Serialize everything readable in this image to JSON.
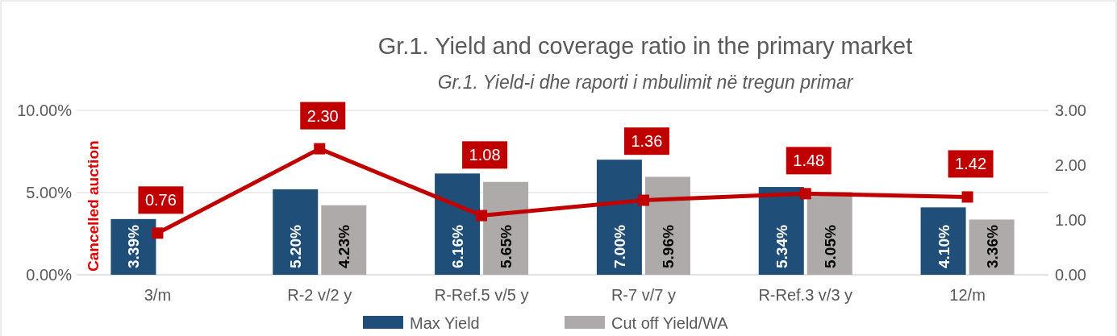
{
  "chart_data": {
    "type": "bar",
    "title": "Gr.1. Yield and coverage ratio in the primary market",
    "subtitle": "Gr.1. Yield-i dhe raporti i mbulimit në tregun primar",
    "categories": [
      "3/m",
      "R-2 v/2 y",
      "R-Ref.5 v/5 y",
      "R-7 v/7 y",
      "R-Ref.3 v/3 y",
      "12/m"
    ],
    "series": [
      {
        "name": "Max Yield",
        "color": "#1f4e79",
        "values": [
          3.39,
          5.2,
          6.16,
          7.0,
          5.34,
          4.1
        ],
        "value_labels": [
          "3.39%",
          "5.20%",
          "6.16%",
          "7.00%",
          "5.34%",
          "4.10%"
        ]
      },
      {
        "name": "Cut off Yield/WA",
        "color": "#aeaaaa",
        "values": [
          null,
          4.23,
          5.65,
          5.96,
          5.05,
          3.36
        ],
        "value_labels": [
          null,
          "4.23%",
          "5.65%",
          "5.96%",
          "5.05%",
          "3.36%"
        ]
      },
      {
        "type": "line",
        "axis": "y2",
        "color": "#c00000",
        "marker": "square",
        "values": [
          0.76,
          2.3,
          1.08,
          1.36,
          1.48,
          1.42
        ],
        "value_labels": [
          "0.76",
          "2.30",
          "1.08",
          "1.36",
          "1.48",
          "1.42"
        ]
      }
    ],
    "ylim": [
      0,
      10
    ],
    "yticks": [
      {
        "value": 0,
        "label": "0.00%"
      },
      {
        "value": 5,
        "label": "5.00%"
      },
      {
        "value": 10,
        "label": "10.00%"
      }
    ],
    "y2lim": [
      0,
      3
    ],
    "y2ticks": [
      {
        "value": 0,
        "label": "0.00"
      },
      {
        "value": 1,
        "label": "1.00"
      },
      {
        "value": 2,
        "label": "2.00"
      },
      {
        "value": 3,
        "label": "3.00"
      }
    ],
    "grid": "y",
    "legend": "bottom",
    "annotations": [
      "Cancelled auction"
    ]
  }
}
